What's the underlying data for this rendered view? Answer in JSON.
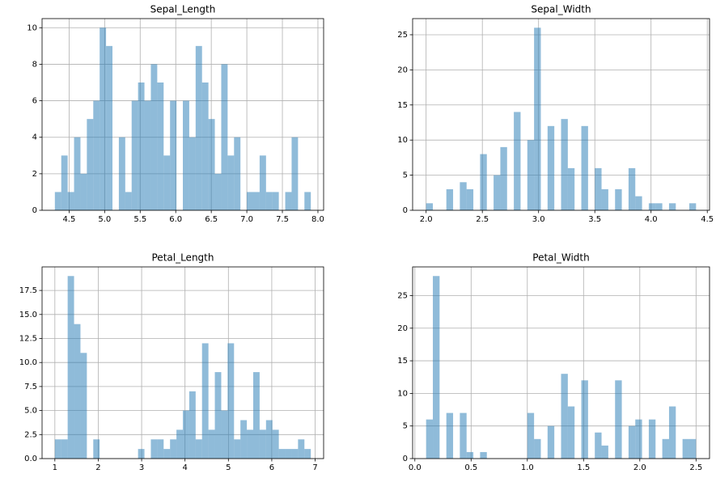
{
  "chart_data": [
    {
      "type": "histogram",
      "title": "Sepal_Length",
      "color": "#1f77b4",
      "grid": true,
      "bins": [
        4.3,
        4.39,
        4.48,
        4.57,
        4.66,
        4.75,
        4.84,
        4.93,
        5.02,
        5.11,
        5.2,
        5.29,
        5.38,
        5.47,
        5.56,
        5.65,
        5.74,
        5.83,
        5.92,
        6.01,
        6.1,
        6.19,
        6.28,
        6.37,
        6.46,
        6.55,
        6.64,
        6.73,
        6.82,
        6.91,
        7.0,
        7.09,
        7.18,
        7.27,
        7.36,
        7.45,
        7.54,
        7.63,
        7.72,
        7.81,
        7.9
      ],
      "values": [
        1,
        3,
        1,
        4,
        2,
        5,
        6,
        10,
        9,
        0,
        4,
        1,
        6,
        7,
        6,
        8,
        7,
        3,
        6,
        0,
        6,
        4,
        9,
        7,
        5,
        2,
        8,
        3,
        4,
        0,
        1,
        1,
        3,
        1,
        1,
        0,
        1,
        4,
        0,
        1
      ],
      "xlim": [
        4.12,
        8.08
      ],
      "ylim": [
        0,
        10.5
      ],
      "xticks": [
        4.5,
        {
          "value": 5,
          "label": "5.0"
        },
        5.5,
        {
          "value": 6,
          "label": "6.0"
        },
        6.5,
        {
          "value": 7,
          "label": "7.0"
        },
        7.5,
        {
          "value": 8,
          "label": "8.0"
        }
      ],
      "yticks": [
        0,
        2,
        4,
        6,
        8,
        10
      ]
    },
    {
      "type": "histogram",
      "title": "Sepal_Width",
      "color": "#1f77b4",
      "grid": true,
      "bins": [
        2.0,
        2.06,
        2.12,
        2.18,
        2.24,
        2.3,
        2.36,
        2.42,
        2.48,
        2.54,
        2.6,
        2.66,
        2.72,
        2.78,
        2.84,
        2.9,
        2.96,
        3.02,
        3.08,
        3.14,
        3.2,
        3.26,
        3.32,
        3.38,
        3.44,
        3.5,
        3.56,
        3.62,
        3.68,
        3.74,
        3.8,
        3.86,
        3.92,
        3.98,
        4.04,
        4.1,
        4.16,
        4.22,
        4.28,
        4.34,
        4.4
      ],
      "values": [
        1,
        0,
        0,
        3,
        0,
        4,
        3,
        0,
        8,
        0,
        5,
        9,
        0,
        14,
        0,
        10,
        26,
        0,
        12,
        0,
        13,
        6,
        0,
        12,
        0,
        6,
        3,
        0,
        3,
        0,
        6,
        2,
        0,
        1,
        1,
        0,
        1,
        0,
        0,
        1
      ],
      "xlim": [
        1.88,
        4.52
      ],
      "ylim": [
        0,
        27.3
      ],
      "xticks": [
        {
          "value": 2,
          "label": "2.0"
        },
        2.5,
        {
          "value": 3,
          "label": "3.0"
        },
        3.5,
        {
          "value": 4,
          "label": "4.0"
        },
        4.5
      ],
      "yticks": [
        0,
        5,
        10,
        15,
        20,
        25
      ]
    },
    {
      "type": "histogram",
      "title": "Petal_Length",
      "color": "#1f77b4",
      "grid": true,
      "bins": [
        1,
        1.1475,
        1.295,
        1.4425,
        1.59,
        1.7375,
        1.885,
        2.0325,
        2.18,
        2.3275,
        2.475,
        2.6225,
        2.77,
        2.9175,
        3.065,
        3.2125,
        3.36,
        3.5075,
        3.655,
        3.8025,
        3.95,
        4.0975,
        4.245,
        4.3925,
        4.54,
        4.6875,
        4.835,
        4.9825,
        5.13,
        5.2775,
        5.425,
        5.5725,
        5.72,
        5.8675,
        6.015,
        6.1625,
        6.31,
        6.4575,
        6.605,
        6.7525,
        6.9
      ],
      "values": [
        2,
        2,
        19,
        14,
        11,
        0,
        2,
        0,
        0,
        0,
        0,
        0,
        0,
        1,
        0,
        2,
        2,
        1,
        2,
        3,
        5,
        7,
        2,
        12,
        3,
        9,
        5,
        12,
        2,
        4,
        3,
        9,
        3,
        4,
        3,
        1,
        1,
        1,
        2,
        1
      ],
      "xlim": [
        0.705,
        7.195
      ],
      "ylim": [
        0,
        19.95
      ],
      "xticks": [
        1,
        2,
        3,
        4,
        5,
        6,
        7
      ],
      "yticks": [
        {
          "value": 0,
          "label": "0.0"
        },
        2.5,
        {
          "value": 5,
          "label": "5.0"
        },
        7.5,
        {
          "value": 10,
          "label": "10.0"
        },
        12.5,
        {
          "value": 15,
          "label": "15.0"
        },
        17.5
      ]
    },
    {
      "type": "histogram",
      "title": "Petal_Width",
      "color": "#1f77b4",
      "grid": true,
      "bins": [
        0.1,
        0.16,
        0.22,
        0.28,
        0.34,
        0.4,
        0.46,
        0.52,
        0.58,
        0.64,
        0.7,
        0.76,
        0.82,
        0.88,
        0.94,
        1.0,
        1.06,
        1.12,
        1.18,
        1.24,
        1.3,
        1.36,
        1.42,
        1.48,
        1.54,
        1.6,
        1.66,
        1.72,
        1.78,
        1.84,
        1.9,
        1.96,
        2.02,
        2.08,
        2.14,
        2.2,
        2.26,
        2.32,
        2.38,
        2.44,
        2.5
      ],
      "values": [
        6,
        28,
        0,
        7,
        0,
        7,
        1,
        0,
        1,
        0,
        0,
        0,
        0,
        0,
        0,
        7,
        3,
        0,
        5,
        0,
        13,
        8,
        0,
        12,
        0,
        4,
        2,
        0,
        12,
        0,
        5,
        6,
        0,
        6,
        0,
        3,
        8,
        0,
        3,
        3
      ],
      "xlim": [
        -0.02,
        2.62
      ],
      "ylim": [
        0,
        29.4
      ],
      "xticks": [
        {
          "value": 0,
          "label": "0.0"
        },
        0.5,
        {
          "value": 1,
          "label": "1.0"
        },
        1.5,
        {
          "value": 2,
          "label": "2.0"
        },
        2.5
      ],
      "yticks": [
        0,
        5,
        10,
        15,
        20,
        25
      ]
    }
  ]
}
